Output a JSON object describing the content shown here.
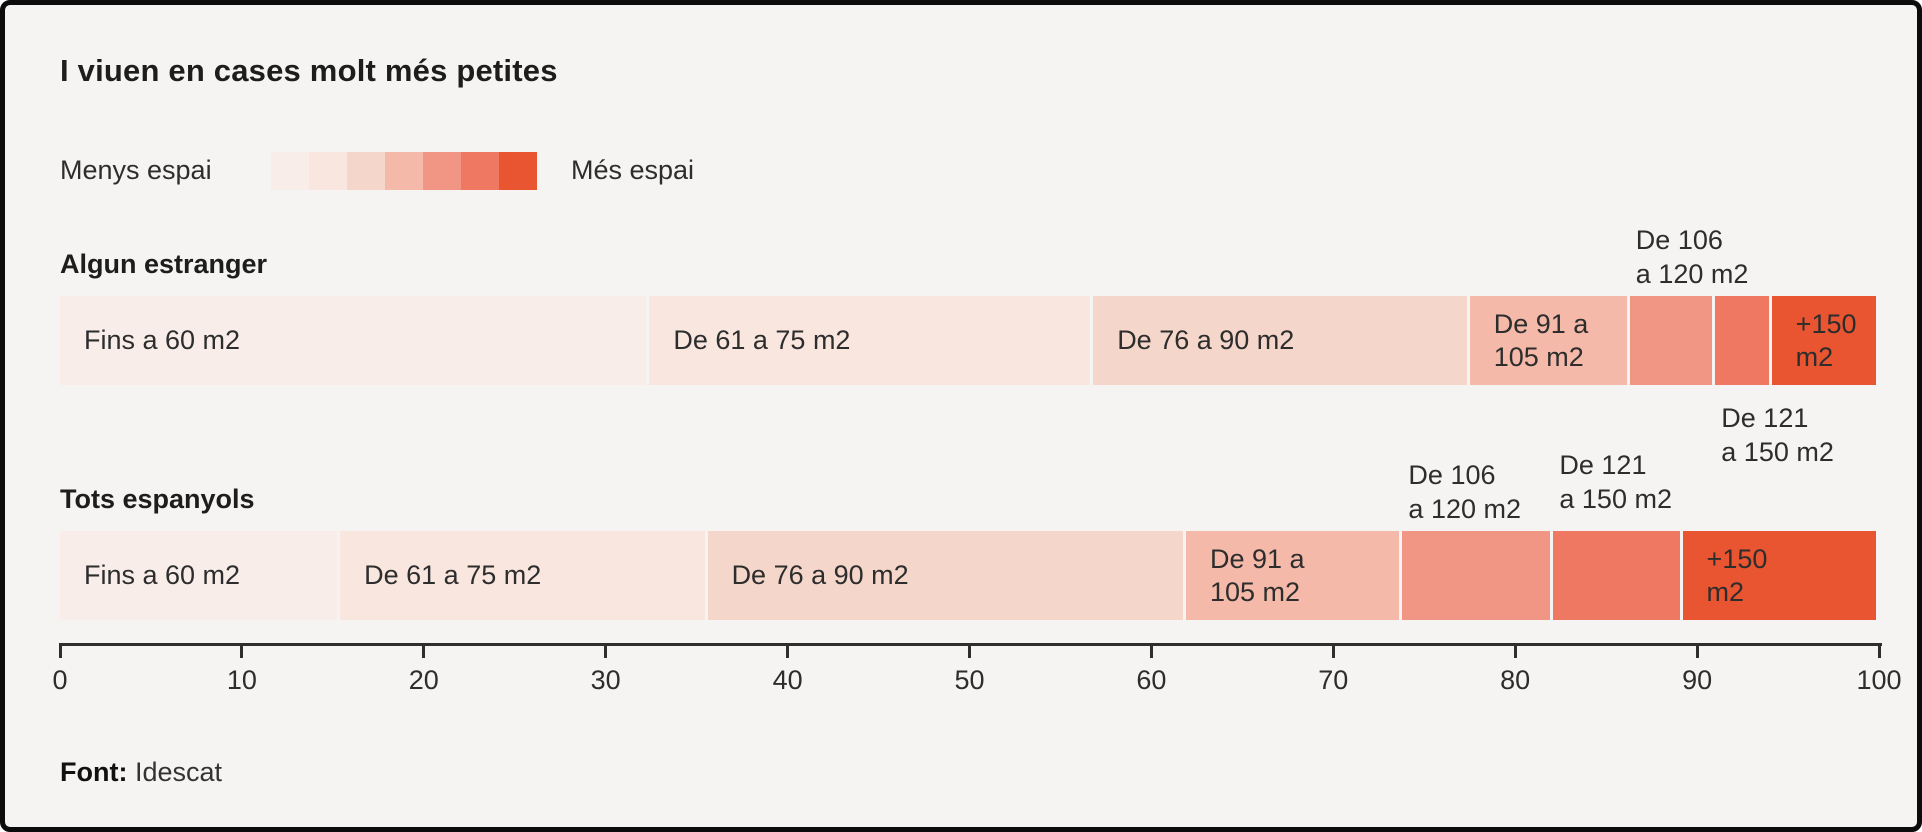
{
  "title": "I viuen en cases molt més petites",
  "legend": {
    "less_label": "Menys espai",
    "more_label": "Més espai"
  },
  "footer": {
    "source_label": "Font:",
    "source_value": "Idescat"
  },
  "chart_data": {
    "type": "bar",
    "orientation": "horizontal-stacked",
    "title": "I viuen en cases molt més petites",
    "xlim": [
      0,
      100
    ],
    "x_ticks": [
      0,
      10,
      20,
      30,
      40,
      50,
      60,
      70,
      80,
      90,
      100
    ],
    "grid": false,
    "palette": [
      "#f8ede9",
      "#f9e6df",
      "#f5d6ca",
      "#f4b9a8",
      "#f19584",
      "#ee7862",
      "#e95431"
    ],
    "categories": [
      "Fins a 60 m2",
      "De 61 a 75 m2",
      "De 76 a 90 m2",
      "De 91 a 105 m2",
      "De 106 a 120 m2",
      "De 121 a 150 m2",
      "+150 m2"
    ],
    "segment_labels": [
      "Fins a 60 m2",
      "De 61 a 75 m2",
      "De 76 a 90 m2",
      "De 91 a\n105 m2",
      "",
      "",
      "+150\nm2"
    ],
    "series": [
      {
        "name": "Algun estranger",
        "values": [
          32.4,
          24.4,
          20.7,
          8.8,
          4.7,
          3.1,
          5.9
        ]
      },
      {
        "name": "Tots espanyols",
        "values": [
          15.4,
          20.2,
          26.3,
          11.9,
          8.3,
          7.1,
          10.8
        ]
      }
    ],
    "annotations": [
      {
        "text": "De 106\na 120 m2",
        "series": 0,
        "segment": 4,
        "position": "above"
      },
      {
        "text": "De 121\na 150 m2",
        "series": 0,
        "segment": 5,
        "position": "below"
      },
      {
        "text": "De 106\na 120 m2",
        "series": 1,
        "segment": 4,
        "position": "above"
      },
      {
        "text": "De 121\na 150 m2",
        "series": 1,
        "segment": 5,
        "position": "above-high"
      }
    ]
  }
}
